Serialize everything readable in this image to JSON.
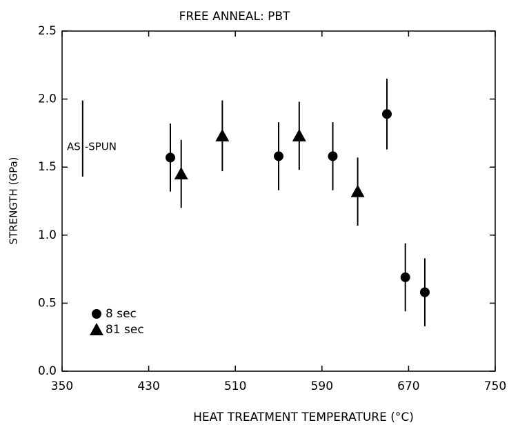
{
  "chart_data": {
    "type": "scatter",
    "title": "FREE ANNEAL:  PBT",
    "xlabel": "HEAT TREATMENT  TEMPERATURE  (°C)",
    "ylabel": "STRENGTH (GPa)",
    "xlim": [
      350,
      750
    ],
    "xticks": [
      350,
      430,
      510,
      590,
      670,
      750
    ],
    "ylim": [
      0,
      2.5
    ],
    "yticks": [
      {
        "value": 0,
        "label": "0.0"
      },
      0.5,
      {
        "value": 1,
        "label": "1.0"
      },
      1.5,
      {
        "value": 2,
        "label": "2.0"
      },
      2.5
    ],
    "legend": "lower left",
    "series": [
      {
        "name": "8 sec",
        "marker": "circle",
        "color": "#000000",
        "x": [
          450,
          550,
          600,
          650,
          667,
          685
        ],
        "values": [
          1.57,
          1.58,
          1.58,
          1.89,
          0.69,
          0.58
        ],
        "errors": [
          0.25,
          0.25,
          0.25,
          0.26,
          0.25,
          0.25
        ]
      },
      {
        "name": "81 sec",
        "marker": "triangle",
        "color": "#000000",
        "x": [
          460,
          498,
          569,
          623
        ],
        "values": [
          1.45,
          1.73,
          1.73,
          1.32
        ],
        "errors": [
          0.25,
          0.26,
          0.25,
          0.25
        ]
      }
    ],
    "annotation": {
      "left": "AS",
      "right": "-SPUN",
      "x": 369,
      "value": 1.71,
      "error": 0.28
    }
  }
}
